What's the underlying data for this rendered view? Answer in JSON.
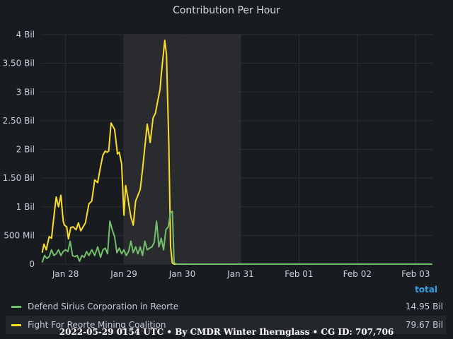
{
  "panel": {
    "title": "Contribution Per Hour"
  },
  "legend": {
    "total_header": "total",
    "items": [
      {
        "name": "Defend Sirius Corporation in Reorte",
        "total": "14.95 Bil",
        "color": "#73bf69"
      },
      {
        "name": "Fight For Reorte Mining Coalition",
        "total": "79.67 Bil",
        "color": "#fade2a"
      }
    ]
  },
  "footer": {
    "text": "2022-05-29 0154 UTC • By CMDR Winter Iherngl​ass • CG ID: 707,706"
  },
  "chart_data": {
    "type": "line",
    "title": "Contribution Per Hour",
    "x_unit": "days (Jan 28 = 0)",
    "x_ticks": [
      "Jan 28",
      "Jan 29",
      "Jan 30",
      "Jan 31",
      "Feb 01",
      "Feb 02",
      "Feb 03"
    ],
    "xlim": [
      -0.42,
      6.3
    ],
    "ylim": [
      0,
      4000000000
    ],
    "y_ticks": [
      "0",
      "500 Mil",
      "1 Bil",
      "1.50 Bil",
      "2 Bil",
      "2.50 Bil",
      "3 Bil",
      "3.50 Bil",
      "4 Bil"
    ],
    "highlight_region": {
      "from": 1.0,
      "to": 3.0,
      "color": "#2a2b2e"
    },
    "grid": true,
    "series": [
      {
        "name": "Fight For Reorte Mining Coalition",
        "color": "#fade2a",
        "x": [
          -0.4,
          -0.37,
          -0.33,
          -0.28,
          -0.24,
          -0.2,
          -0.16,
          -0.12,
          -0.08,
          -0.04,
          -0.02,
          0.02,
          0.05,
          0.09,
          0.13,
          0.18,
          0.22,
          0.26,
          0.3,
          0.34,
          0.4,
          0.45,
          0.5,
          0.55,
          0.59,
          0.64,
          0.68,
          0.71,
          0.74,
          0.78,
          0.84,
          0.89,
          0.92,
          0.96,
          1.0,
          1.03,
          1.06,
          1.09,
          1.12,
          1.16,
          1.2,
          1.24,
          1.28,
          1.32,
          1.36,
          1.4,
          1.45,
          1.5,
          1.54,
          1.58,
          1.62,
          1.64,
          1.67,
          1.7,
          1.73,
          1.77,
          1.8,
          1.83,
          1.86,
          1.88,
          1.9,
          1.93,
          1.96,
          2.0,
          2.04,
          2.1,
          2.2,
          2.4,
          2.8,
          3.2,
          3.6,
          4.0,
          4.4,
          4.8,
          5.2,
          5.6,
          6.0,
          6.28
        ],
        "values": [
          200000000.0,
          350000000.0,
          250000000.0,
          480000000.0,
          450000000.0,
          820000000.0,
          1170000000.0,
          1000000000.0,
          1200000000.0,
          750000000.0,
          680000000.0,
          650000000.0,
          440000000.0,
          640000000.0,
          650000000.0,
          600000000.0,
          720000000.0,
          580000000.0,
          650000000.0,
          720000000.0,
          1050000000.0,
          1100000000.0,
          1470000000.0,
          1420000000.0,
          1650000000.0,
          1900000000.0,
          1970000000.0,
          1950000000.0,
          1970000000.0,
          2460000000.0,
          2350000000.0,
          1920000000.0,
          1950000000.0,
          1750000000.0,
          850000000.0,
          1370000000.0,
          1200000000.0,
          1000000000.0,
          820000000.0,
          680000000.0,
          1100000000.0,
          1200000000.0,
          1300000000.0,
          1650000000.0,
          2050000000.0,
          2440000000.0,
          2120000000.0,
          2550000000.0,
          2630000000.0,
          2850000000.0,
          3050000000.0,
          3300000000.0,
          3600000000.0,
          3900000000.0,
          3650000000.0,
          2100000000.0,
          300000000.0,
          20000000.0,
          0.0,
          0.0,
          0.0,
          0.0,
          0.0,
          0.0,
          0.0,
          0.0,
          0.0,
          0.0,
          0.0,
          0.0,
          0.0,
          0.0,
          0.0,
          0.0,
          0.0,
          0.0,
          0.0,
          0.0
        ]
      },
      {
        "name": "Defend Sirius Corporation in Reorte",
        "color": "#73bf69",
        "x": [
          -0.4,
          -0.36,
          -0.32,
          -0.28,
          -0.24,
          -0.2,
          -0.16,
          -0.12,
          -0.08,
          -0.04,
          0.0,
          0.04,
          0.08,
          0.12,
          0.16,
          0.2,
          0.24,
          0.28,
          0.32,
          0.36,
          0.4,
          0.45,
          0.5,
          0.55,
          0.6,
          0.64,
          0.68,
          0.72,
          0.76,
          0.8,
          0.84,
          0.88,
          0.92,
          0.96,
          1.0,
          1.04,
          1.08,
          1.12,
          1.16,
          1.2,
          1.24,
          1.28,
          1.32,
          1.36,
          1.4,
          1.44,
          1.48,
          1.52,
          1.56,
          1.6,
          1.64,
          1.68,
          1.72,
          1.76,
          1.8,
          1.83,
          1.86,
          1.9,
          1.95,
          2.0,
          2.1,
          2.3,
          2.7,
          3.2,
          3.8,
          4.4,
          5.0,
          5.6,
          6.28
        ],
        "values": [
          30000000.0,
          150000000.0,
          100000000.0,
          130000000.0,
          250000000.0,
          150000000.0,
          180000000.0,
          250000000.0,
          150000000.0,
          220000000.0,
          250000000.0,
          220000000.0,
          400000000.0,
          150000000.0,
          130000000.0,
          150000000.0,
          50000000.0,
          150000000.0,
          120000000.0,
          220000000.0,
          150000000.0,
          250000000.0,
          150000000.0,
          300000000.0,
          120000000.0,
          250000000.0,
          280000000.0,
          180000000.0,
          750000000.0,
          600000000.0,
          480000000.0,
          200000000.0,
          280000000.0,
          180000000.0,
          250000000.0,
          150000000.0,
          220000000.0,
          400000000.0,
          200000000.0,
          300000000.0,
          180000000.0,
          300000000.0,
          150000000.0,
          400000000.0,
          250000000.0,
          280000000.0,
          300000000.0,
          380000000.0,
          750000000.0,
          300000000.0,
          450000000.0,
          250000000.0,
          600000000.0,
          650000000.0,
          900000000.0,
          920000000.0,
          20000000.0,
          0.0,
          0.0,
          0.0,
          0.0,
          0.0,
          0.0,
          0.0,
          0.0,
          0.0,
          0.0,
          0.0,
          0.0
        ]
      }
    ]
  }
}
